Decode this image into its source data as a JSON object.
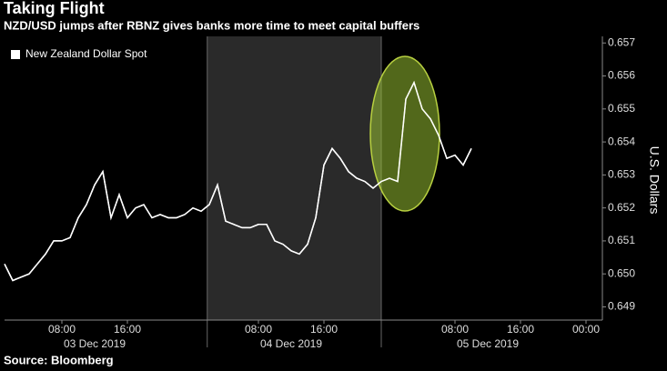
{
  "chart_data": {
    "type": "line",
    "title": "Taking Flight",
    "subtitle": "NZD/USD jumps after RBNZ gives banks more time to meet capital buffers",
    "source": "Source: Bloomberg",
    "y_label": "U.S. Dollars",
    "legend_position": "upper left",
    "x": [
      "2019-12-03T01:00",
      "2019-12-03T02:00",
      "2019-12-03T03:00",
      "2019-12-03T04:00",
      "2019-12-03T05:00",
      "2019-12-03T06:00",
      "2019-12-03T07:00",
      "2019-12-03T08:00",
      "2019-12-03T09:00",
      "2019-12-03T10:00",
      "2019-12-03T11:00",
      "2019-12-03T12:00",
      "2019-12-03T13:00",
      "2019-12-03T14:00",
      "2019-12-03T15:00",
      "2019-12-03T16:00",
      "2019-12-03T17:00",
      "2019-12-03T18:00",
      "2019-12-03T19:00",
      "2019-12-03T20:00",
      "2019-12-03T21:00",
      "2019-12-03T22:00",
      "2019-12-03T23:00",
      "2019-12-04T00:00",
      "2019-12-04T01:00",
      "2019-12-04T02:00",
      "2019-12-04T03:00",
      "2019-12-04T04:00",
      "2019-12-04T05:00",
      "2019-12-04T06:00",
      "2019-12-04T07:00",
      "2019-12-04T08:00",
      "2019-12-04T09:00",
      "2019-12-04T10:00",
      "2019-12-04T11:00",
      "2019-12-04T12:00",
      "2019-12-04T13:00",
      "2019-12-04T14:00",
      "2019-12-04T15:00",
      "2019-12-04T16:00",
      "2019-12-04T17:00",
      "2019-12-04T18:00",
      "2019-12-04T19:00",
      "2019-12-04T20:00",
      "2019-12-04T21:00",
      "2019-12-04T22:00",
      "2019-12-04T23:00",
      "2019-12-05T00:00",
      "2019-12-05T01:00",
      "2019-12-05T02:00",
      "2019-12-05T03:00",
      "2019-12-05T04:00",
      "2019-12-05T05:00",
      "2019-12-05T06:00",
      "2019-12-05T07:00",
      "2019-12-05T08:00",
      "2019-12-05T09:00",
      "2019-12-05T10:00"
    ],
    "series": [
      {
        "name": "New Zealand Dollar Spot",
        "color": "#ffffff",
        "values": [
          0.6503,
          0.6498,
          0.6499,
          0.65,
          0.6503,
          0.6506,
          0.651,
          0.651,
          0.6511,
          0.6517,
          0.6521,
          0.6527,
          0.6531,
          0.6517,
          0.6524,
          0.6517,
          0.652,
          0.6521,
          0.6517,
          0.6518,
          0.6517,
          0.6517,
          0.6518,
          0.652,
          0.6519,
          0.6521,
          0.6527,
          0.6516,
          0.6515,
          0.6514,
          0.6514,
          0.6515,
          0.6515,
          0.651,
          0.6509,
          0.6507,
          0.6506,
          0.6509,
          0.6517,
          0.6533,
          0.6538,
          0.6535,
          0.6531,
          0.6529,
          0.6528,
          0.6526,
          0.6528,
          0.6529,
          0.6528,
          0.6553,
          0.6558,
          0.655,
          0.6547,
          0.6542,
          0.6535,
          0.6536,
          0.6533,
          0.6538
        ]
      }
    ],
    "xlim": [
      "2019-12-03T01:00",
      "2019-12-06T02:00"
    ],
    "xticks": [
      {
        "value": "2019-12-03T08:00",
        "label": "08:00"
      },
      {
        "value": "2019-12-03T16:00",
        "label": "16:00"
      },
      {
        "value": "2019-12-04T08:00",
        "label": "08:00"
      },
      {
        "value": "2019-12-04T16:00",
        "label": "16:00"
      },
      {
        "value": "2019-12-05T08:00",
        "label": "08:00"
      },
      {
        "value": "2019-12-05T16:00",
        "label": "16:00"
      },
      {
        "value": "2019-12-06T00:00",
        "label": "00:00"
      }
    ],
    "date_labels": [
      {
        "value": "2019-12-03T12:00",
        "label": "03 Dec 2019"
      },
      {
        "value": "2019-12-04T12:00",
        "label": "04 Dec 2019"
      },
      {
        "value": "2019-12-05T12:00",
        "label": "05 Dec 2019"
      }
    ],
    "shaded_range": [
      "2019-12-04T01:45",
      "2019-12-04T23:00"
    ],
    "ylim": [
      0.6486,
      0.6572
    ],
    "yticks": [
      0.649,
      {
        "value": 0.65,
        "label": "0.650"
      },
      0.651,
      0.652,
      0.653,
      0.654,
      0.655,
      0.656,
      0.657
    ]
  }
}
